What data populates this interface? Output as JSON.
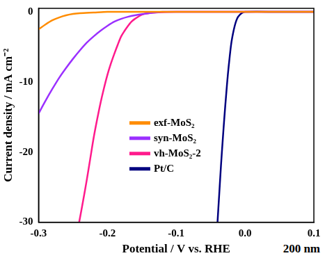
{
  "chart_data": {
    "type": "line",
    "x_label": "Potential / V vs. RHE",
    "y_label": "Current density / mA cm⁻²",
    "annotations": [
      "200 nm"
    ],
    "xlim": [
      -0.3,
      0.1
    ],
    "ylim": [
      -30,
      0.5
    ],
    "xticks": [
      -0.3,
      -0.2,
      -0.1,
      {
        "value": 0,
        "label": "0.0"
      },
      0.1
    ],
    "yticks": [
      -30,
      -20,
      -10,
      0
    ],
    "grid": false,
    "legend": "lower right",
    "series": [
      {
        "name": "exf-MoS₂",
        "color": "#ff8c00",
        "x": [
          -0.3,
          -0.29,
          -0.28,
          -0.27,
          -0.26,
          -0.25,
          -0.24,
          -0.22,
          -0.2,
          -0.1,
          0.0,
          0.1
        ],
        "values": [
          -2.5,
          -1.8,
          -1.2,
          -0.8,
          -0.5,
          -0.3,
          -0.2,
          -0.1,
          0,
          0,
          0,
          0
        ]
      },
      {
        "name": "syn-MoS₂",
        "color": "#9b30ff",
        "x": [
          -0.3,
          -0.29,
          -0.28,
          -0.27,
          -0.26,
          -0.25,
          -0.24,
          -0.23,
          -0.22,
          -0.21,
          -0.2,
          -0.19,
          -0.18,
          -0.17,
          -0.16,
          -0.14,
          -0.12,
          -0.1,
          0.0,
          0.1
        ],
        "values": [
          -14.5,
          -12.7,
          -11,
          -9.4,
          -8,
          -6.7,
          -5.5,
          -4.4,
          -3.5,
          -2.7,
          -2,
          -1.4,
          -1,
          -0.7,
          -0.5,
          -0.2,
          0,
          0,
          0,
          0
        ]
      },
      {
        "name": "vh-MoS₂-2",
        "color": "#ff1a8c",
        "x": [
          -0.241,
          -0.235,
          -0.23,
          -0.225,
          -0.22,
          -0.215,
          -0.21,
          -0.205,
          -0.2,
          -0.195,
          -0.19,
          -0.185,
          -0.18,
          -0.175,
          -0.17,
          -0.165,
          -0.16,
          -0.15,
          -0.14,
          -0.13,
          -0.1,
          0.0,
          0.1
        ],
        "values": [
          -30,
          -26.8,
          -24,
          -21,
          -18,
          -15.4,
          -13,
          -10.9,
          -9,
          -7.4,
          -6,
          -4.7,
          -3.5,
          -2.7,
          -2,
          -1.4,
          -1,
          -0.4,
          -0.2,
          -0.1,
          0,
          0,
          0
        ]
      },
      {
        "name": "Pt/C",
        "color": "#00007f",
        "x": [
          -0.04,
          -0.0375,
          -0.035,
          -0.0325,
          -0.03,
          -0.0275,
          -0.025,
          -0.0225,
          -0.02,
          -0.0175,
          -0.015,
          -0.0125,
          -0.01,
          -0.005,
          0.0,
          0.05,
          0.1
        ],
        "values": [
          -30,
          -26,
          -22,
          -18.4,
          -15,
          -11.9,
          -9,
          -6.6,
          -4.5,
          -3.1,
          -2,
          -1.2,
          -0.7,
          -0.2,
          0,
          0,
          0
        ]
      }
    ]
  }
}
